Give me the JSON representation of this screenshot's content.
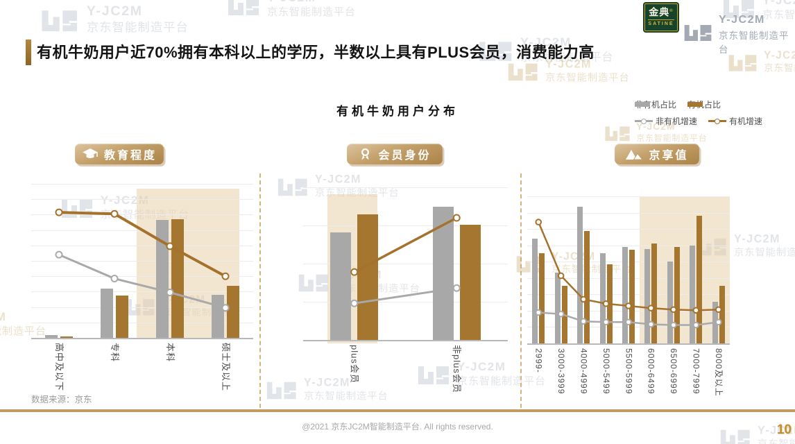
{
  "page": {
    "title": "有机牛奶用户近70%拥有本科以上的学历，半数以上具有PLUS会员，消费能力高",
    "chart_title": "有机牛奶用户分布",
    "source_note": "数据来源：京东",
    "footer": "@2021 京东JC2M智能制造平台. All rights reserved.",
    "page_number": "10"
  },
  "logos": {
    "satine": {
      "name": "金典",
      "reg": "®",
      "sub": "SATINE"
    },
    "jc2m": {
      "line1": "Y-JC2M",
      "line2": "京东智能制造平台"
    }
  },
  "watermark": {
    "line1": "Y-JC2M",
    "line2": "京东智能制造平台"
  },
  "legend": {
    "items": [
      {
        "label": "非有机占比",
        "type": "bar",
        "color": "#a8a8a8"
      },
      {
        "label": "有机占比",
        "type": "bar",
        "color": "#a5762f"
      },
      {
        "label": "非有机增速",
        "type": "line",
        "color": "#a9a9a9"
      },
      {
        "label": "有机增速",
        "type": "line",
        "color": "#a5722c"
      }
    ]
  },
  "sections": [
    {
      "title": "教育程度",
      "icon": "graduation-cap-icon"
    },
    {
      "title": "会员身份",
      "icon": "medal-icon"
    },
    {
      "title": "京享值",
      "icon": "mountain-icon"
    }
  ],
  "colors": {
    "nonorganic_bar": "#a8a8a8",
    "organic_bar": "#a5762f",
    "nonorganic_line": "#a9a9a9",
    "organic_line": "#a5722c",
    "highlight_band": "#e8cea3",
    "accent_gold": "#a8782e",
    "divider_gold": "#c49a62",
    "satine_green": "#16432a"
  },
  "chart_data": [
    {
      "type": "bar",
      "section": "教育程度",
      "value_unit": "percent_of_axis_height (no numeric axis labels shown)",
      "categories": [
        "高中及以下",
        "专科",
        "本科",
        "硕士及以上"
      ],
      "bar_series": [
        {
          "name": "非有机占比",
          "values": [
            1.8,
            32,
            76.5,
            28
          ]
        },
        {
          "name": "有机占比",
          "values": [
            1.1,
            27.5,
            77,
            34
          ]
        }
      ],
      "line_series": [
        {
          "name": "非有机增速",
          "values": [
            54,
            38.5,
            29.5,
            19.5
          ]
        },
        {
          "name": "有机增速",
          "values": [
            81.5,
            80.5,
            59.5,
            40
          ]
        }
      ],
      "highlight_categories": {
        "from": 2,
        "to": 3
      },
      "grid": true,
      "legend_position": "top-right-shared"
    },
    {
      "type": "bar",
      "section": "会员身份",
      "value_unit": "percent_of_axis_height (no numeric axis labels shown)",
      "categories": [
        "plus会员",
        "非plus会员"
      ],
      "bar_series": [
        {
          "name": "非有机占比",
          "values": [
            70.5,
            87.5
          ]
        },
        {
          "name": "有机占比",
          "values": [
            82.5,
            75.5
          ]
        }
      ],
      "line_series": [
        {
          "name": "非有机增速",
          "values": [
            24,
            34
          ]
        },
        {
          "name": "有机增速",
          "values": [
            44.5,
            80
          ]
        }
      ],
      "highlight_categories": {
        "from": 0,
        "to": 0
      },
      "grid": true,
      "legend_position": "top-right-shared"
    },
    {
      "type": "bar",
      "section": "京享值",
      "value_unit": "percent_of_axis_height (no numeric axis labels shown)",
      "categories": [
        "2999-",
        "3000-3999",
        "4000-4999",
        "5000-5499",
        "5500-5999",
        "6000-6499",
        "6500-6999",
        "7000-7999",
        "8000及以上"
      ],
      "bar_series": [
        {
          "name": "非有机占比",
          "values": [
            71,
            48,
            93,
            61.5,
            65.5,
            64,
            55.5,
            66.5,
            28.5
          ]
        },
        {
          "name": "有机占比",
          "values": [
            61.5,
            39,
            76.5,
            54,
            63.5,
            68,
            65.5,
            87,
            39
          ]
        }
      ],
      "line_series": [
        {
          "name": "非有机增速",
          "values": [
            21,
            20,
            15,
            14.5,
            14.5,
            13,
            12.5,
            12.5,
            14.5
          ]
        },
        {
          "name": "有机增速",
          "values": [
            82.5,
            46,
            30,
            27,
            25.5,
            24,
            23,
            22.5,
            23
          ]
        }
      ],
      "highlight_categories": {
        "from": 5,
        "to": 8
      },
      "grid": true,
      "legend_position": "top-right-shared"
    }
  ]
}
